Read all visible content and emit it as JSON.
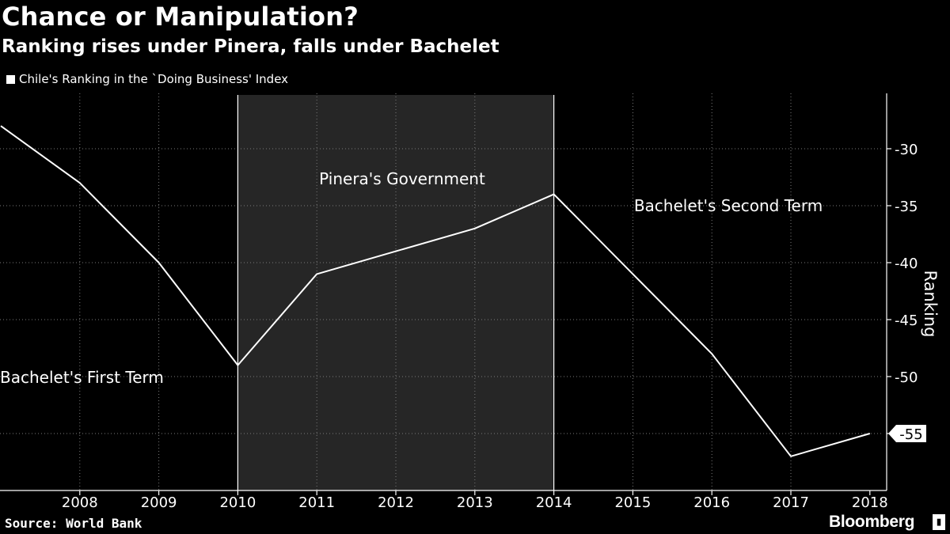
{
  "title": "Chance or Manipulation?",
  "subtitle": "Ranking rises under Pinera, falls under Bachelet",
  "legend_label": "Chile's Ranking in the `Doing Business' Index",
  "source": "Source: World Bank",
  "brand": "Bloomberg",
  "brand_icon": "bloomberg-terminal-icon",
  "colors": {
    "background": "#000000",
    "line": "#ffffff",
    "shade": "#262626",
    "grid": "#7a7a7a"
  },
  "chart_data": {
    "type": "line",
    "x": [
      2007,
      2008,
      2009,
      2010,
      2011,
      2012,
      2013,
      2014,
      2015,
      2016,
      2017,
      2018
    ],
    "series": [
      {
        "values": [
          -28,
          -33,
          -40,
          -49,
          -41,
          -39,
          -37,
          -34,
          -41,
          -48,
          -57,
          -55
        ]
      }
    ],
    "xticks": [
      "2008",
      "2009",
      "2010",
      "2011",
      "2012",
      "2013",
      "2014",
      "2015",
      "2016",
      "2017",
      "2018"
    ],
    "yticks": [
      "-30",
      "-35",
      "-40",
      "-45",
      "-50",
      "-55"
    ],
    "ytick_values": [
      -30,
      -35,
      -40,
      -45,
      -50,
      -55
    ],
    "ylabel": "Ranking",
    "ylim": [
      -60,
      -25
    ],
    "y_axis_side": "right",
    "grid": true,
    "last_value_label": "-55",
    "shaded_period": {
      "from": 2010,
      "to": 2014
    },
    "annotations": [
      {
        "text": "Bachelet's First Term"
      },
      {
        "text": "Pinera's Government"
      },
      {
        "text": "Bachelet's Second Term"
      }
    ]
  }
}
